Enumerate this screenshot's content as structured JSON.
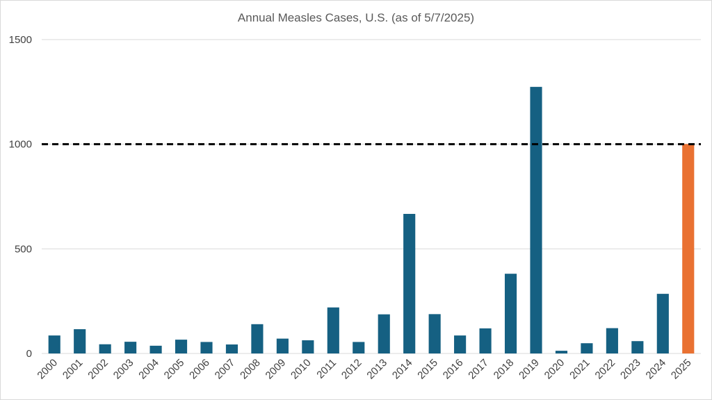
{
  "chart_data": {
    "type": "bar",
    "title": "Annual Measles Cases, U.S. (as of 5/7/2025)",
    "xlabel": "",
    "ylabel": "",
    "ylim": [
      0,
      1500
    ],
    "yticks": [
      0,
      500,
      1000,
      1500
    ],
    "grid": true,
    "legend": "none",
    "categories": [
      "2000",
      "2001",
      "2002",
      "2003",
      "2004",
      "2005",
      "2006",
      "2007",
      "2008",
      "2009",
      "2010",
      "2011",
      "2012",
      "2013",
      "2014",
      "2015",
      "2016",
      "2017",
      "2018",
      "2019",
      "2020",
      "2021",
      "2022",
      "2023",
      "2024",
      "2025"
    ],
    "values": [
      86,
      116,
      44,
      56,
      37,
      66,
      55,
      43,
      140,
      71,
      63,
      220,
      55,
      187,
      667,
      188,
      86,
      120,
      381,
      1274,
      13,
      49,
      121,
      59,
      285,
      1001
    ],
    "colors": {
      "default": "#156082",
      "highlight": "#E97132",
      "reference_line": "#000000",
      "grid": "#d9d9d9"
    },
    "highlight_category": "2025",
    "reference_line": {
      "y": 1000,
      "style": "dashed"
    }
  }
}
